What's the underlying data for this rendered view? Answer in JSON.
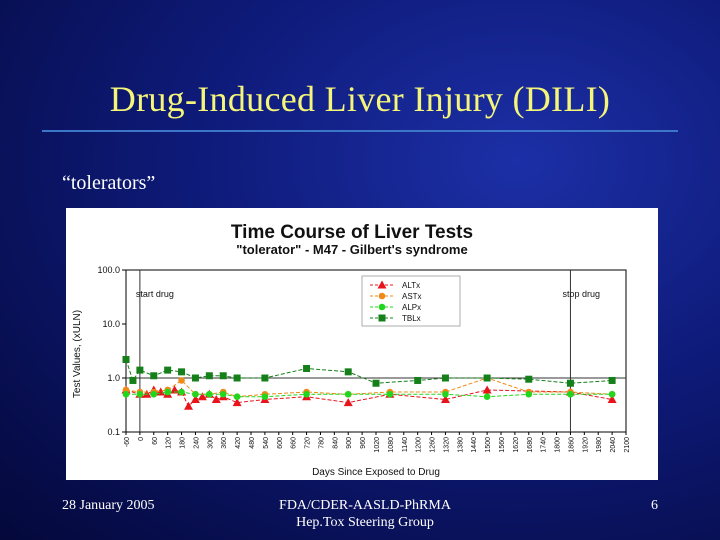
{
  "slide": {
    "title": "Drug-Induced Liver Injury (DILI)",
    "subtitle": "“tolerators”",
    "footer_date": "28 January 2005",
    "footer_org_line1": "FDA/CDER-AASLD-PhRMA",
    "footer_org_line2": "Hep.Tox Steering Group",
    "page_number": "6"
  },
  "colors": {
    "title": "#f5f57a",
    "rule": "#3b76c9",
    "ALTx": "#e8141c",
    "ASTx": "#ee8a18",
    "ALPx": "#22d61e",
    "TBLx": "#15801a"
  },
  "chart_data": {
    "type": "line",
    "title": "Time Course of Liver Tests",
    "subtitle": "\"tolerator\" - M47 - Gilbert's syndrome",
    "xlabel": "Days Since Exposed to Drug",
    "ylabel": "Test Values, (xULN)",
    "y_scale": "log",
    "ylim": [
      0.1,
      100
    ],
    "yticks": [
      "0.1",
      "1.0",
      "10.0",
      "100.0"
    ],
    "xlim": [
      -60,
      2100
    ],
    "xticks": [
      "-60",
      "0",
      "60",
      "120",
      "180",
      "240",
      "300",
      "360",
      "420",
      "480",
      "540",
      "600",
      "660",
      "720",
      "780",
      "840",
      "900",
      "960",
      "1020",
      "1080",
      "1140",
      "1200",
      "1260",
      "1320",
      "1380",
      "1440",
      "1500",
      "1560",
      "1620",
      "1680",
      "1740",
      "1800",
      "1860",
      "1920",
      "1980",
      "2040",
      "2100"
    ],
    "legend_position": "top-center",
    "annotations": [
      {
        "text": "start drug",
        "x": 0
      },
      {
        "text": "stop drug",
        "x": 1860
      }
    ],
    "reference_line": 1.0,
    "series": [
      {
        "name": "ALTx",
        "marker": "triangle",
        "x": [
          -60,
          0,
          30,
          60,
          90,
          120,
          150,
          180,
          210,
          240,
          270,
          300,
          330,
          360,
          420,
          540,
          720,
          900,
          1080,
          1320,
          1500,
          1860,
          2040
        ],
        "values": [
          0.6,
          0.5,
          0.5,
          0.6,
          0.55,
          0.5,
          0.6,
          0.55,
          0.3,
          0.4,
          0.45,
          0.5,
          0.4,
          0.45,
          0.35,
          0.4,
          0.45,
          0.35,
          0.5,
          0.4,
          0.6,
          0.55,
          0.4
        ]
      },
      {
        "name": "ASTx",
        "marker": "circle",
        "x": [
          -60,
          0,
          60,
          120,
          180,
          240,
          300,
          360,
          420,
          540,
          720,
          900,
          1080,
          1320,
          1500,
          1680,
          1860,
          2040
        ],
        "values": [
          0.6,
          0.55,
          0.55,
          0.6,
          0.9,
          0.5,
          0.5,
          0.55,
          0.45,
          0.5,
          0.55,
          0.5,
          0.55,
          0.55,
          1.0,
          0.55,
          0.55,
          0.5
        ]
      },
      {
        "name": "ALPx",
        "marker": "circle",
        "x": [
          -60,
          0,
          60,
          120,
          180,
          240,
          300,
          360,
          420,
          540,
          720,
          900,
          1080,
          1320,
          1500,
          1680,
          1860,
          2040
        ],
        "values": [
          0.5,
          0.5,
          0.5,
          0.55,
          0.55,
          0.5,
          0.5,
          0.5,
          0.45,
          0.45,
          0.5,
          0.5,
          0.5,
          0.5,
          0.45,
          0.5,
          0.5,
          0.5
        ]
      },
      {
        "name": "TBLx",
        "marker": "square",
        "x": [
          -60,
          -30,
          0,
          60,
          120,
          180,
          240,
          300,
          360,
          420,
          540,
          720,
          900,
          1020,
          1200,
          1320,
          1500,
          1680,
          1860,
          2040
        ],
        "values": [
          2.2,
          0.9,
          1.4,
          1.1,
          1.4,
          1.3,
          1.0,
          1.1,
          1.1,
          1.0,
          1.0,
          1.5,
          1.3,
          0.8,
          0.9,
          1.0,
          1.0,
          0.95,
          0.8,
          0.9
        ]
      }
    ]
  }
}
